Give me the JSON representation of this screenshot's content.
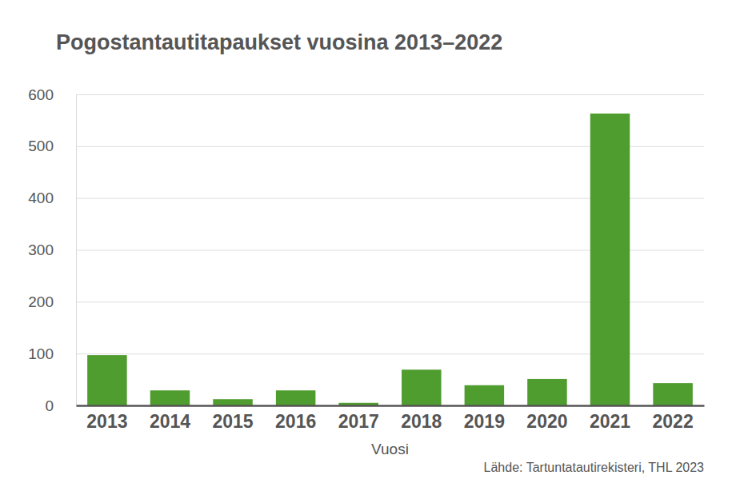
{
  "chart_data": {
    "type": "bar",
    "title": "Pogostantautitapaukset vuosina 2013–2022",
    "x_label": "Vuosi",
    "source": "Lähde: Tartuntatautirekisteri, THL 2023",
    "categories": [
      "2013",
      "2014",
      "2015",
      "2016",
      "2017",
      "2018",
      "2019",
      "2020",
      "2021",
      "2022"
    ],
    "values": [
      97,
      29,
      12,
      29,
      5,
      69,
      39,
      51,
      563,
      43
    ],
    "color": "#4f9c2f",
    "ylim": [
      0,
      600
    ],
    "yticks": [
      0,
      100,
      200,
      300,
      400,
      500,
      600
    ],
    "grid": true
  }
}
